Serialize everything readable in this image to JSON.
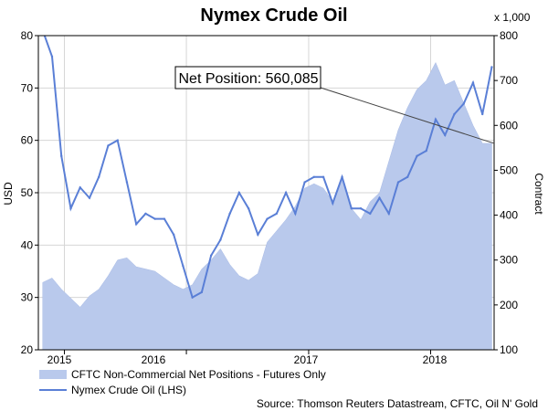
{
  "chart_data": {
    "type": "area",
    "title": "Nymex Crude Oil",
    "ylabel_left": "USD",
    "ylabel_right": "Contract",
    "right_axis_multiplier": "x 1,000",
    "ylim_left": [
      20,
      80
    ],
    "ylim_right": [
      100,
      800
    ],
    "left_ticks": [
      "20",
      "30",
      "40",
      "50",
      "60",
      "70",
      "80"
    ],
    "right_ticks": [
      "100",
      "200",
      "300",
      "400",
      "500",
      "600",
      "700",
      "800"
    ],
    "x_ticks": [
      "2015",
      "2016",
      "2017",
      "2018"
    ],
    "callout": "Net Position: 560,085",
    "legend": [
      {
        "label": "CFTC Non-Commercial Net Positions - Futures Only",
        "color": "#b9c9ec"
      },
      {
        "label": "Nymex Crude Oil (LHS)",
        "color": "#5a7fd6"
      }
    ],
    "source": "Source: Thomson Reuters Datastream, CFTC, Oil N' Gold",
    "series": [
      {
        "name": "CFTC Non-Commercial Net Positions - Futures Only",
        "axis": "right",
        "x": [
          "2014-10-28",
          "2014-11-25",
          "2014-12-23",
          "2015-01-20",
          "2015-02-17",
          "2015-03-17",
          "2015-04-14",
          "2015-05-12",
          "2015-06-09",
          "2015-07-07",
          "2015-08-04",
          "2015-09-01",
          "2015-09-29",
          "2015-10-27",
          "2015-11-24",
          "2015-12-22",
          "2016-01-19",
          "2016-02-16",
          "2016-03-15",
          "2016-04-12",
          "2016-05-10",
          "2016-06-07",
          "2016-07-05",
          "2016-08-02",
          "2016-08-30",
          "2016-09-27",
          "2016-10-25",
          "2016-11-22",
          "2016-12-20",
          "2017-01-17",
          "2017-02-14",
          "2017-03-14",
          "2017-04-11",
          "2017-05-09",
          "2017-06-06",
          "2017-07-04",
          "2017-08-01",
          "2017-08-29",
          "2017-09-26",
          "2017-10-24",
          "2017-11-21",
          "2017-12-19",
          "2018-01-16",
          "2018-02-13",
          "2018-03-13",
          "2018-04-10",
          "2018-05-08",
          "2018-06-05",
          "2018-07-03"
        ],
        "values": [
          250,
          260,
          235,
          215,
          195,
          220,
          235,
          265,
          300,
          305,
          285,
          280,
          275,
          260,
          245,
          235,
          245,
          280,
          300,
          325,
          290,
          265,
          255,
          270,
          340,
          365,
          390,
          420,
          460,
          470,
          460,
          430,
          480,
          415,
          390,
          430,
          450,
          520,
          590,
          640,
          680,
          700,
          740,
          690,
          700,
          650,
          600,
          560,
          560
        ]
      },
      {
        "name": "Nymex Crude Oil (LHS)",
        "axis": "left",
        "x": [
          "2014-10-28",
          "2014-11-25",
          "2014-12-23",
          "2015-01-20",
          "2015-02-17",
          "2015-03-17",
          "2015-04-14",
          "2015-05-12",
          "2015-06-09",
          "2015-07-07",
          "2015-08-04",
          "2015-09-01",
          "2015-09-29",
          "2015-10-27",
          "2015-11-24",
          "2015-12-22",
          "2016-01-19",
          "2016-02-16",
          "2016-03-15",
          "2016-04-12",
          "2016-05-10",
          "2016-06-07",
          "2016-07-05",
          "2016-08-02",
          "2016-08-30",
          "2016-09-27",
          "2016-10-25",
          "2016-11-22",
          "2016-12-20",
          "2017-01-17",
          "2017-02-14",
          "2017-03-14",
          "2017-04-11",
          "2017-05-09",
          "2017-06-06",
          "2017-07-04",
          "2017-08-01",
          "2017-08-29",
          "2017-09-26",
          "2017-10-24",
          "2017-11-21",
          "2017-12-19",
          "2018-01-16",
          "2018-02-13",
          "2018-03-13",
          "2018-04-10",
          "2018-05-08",
          "2018-06-05",
          "2018-07-03"
        ],
        "values": [
          81,
          76,
          57,
          47,
          51,
          49,
          53,
          59,
          60,
          52,
          44,
          46,
          45,
          45,
          42,
          36,
          30,
          31,
          38,
          41,
          46,
          50,
          47,
          42,
          45,
          46,
          50,
          46,
          52,
          53,
          53,
          48,
          53,
          47,
          47,
          46,
          49,
          46,
          52,
          53,
          57,
          58,
          64,
          61,
          65,
          67,
          71,
          65,
          74
        ]
      }
    ]
  }
}
